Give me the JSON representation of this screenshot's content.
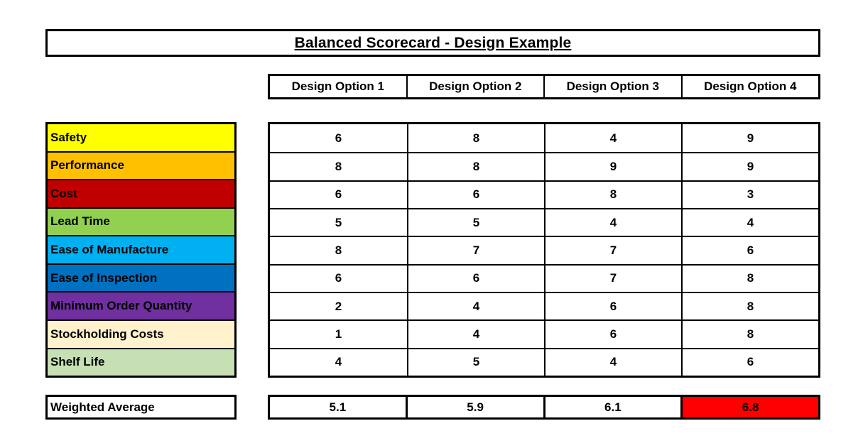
{
  "title": "Balanced Scorecard - Design Example",
  "columns": [
    "Design Option 1",
    "Design Option 2",
    "Design Option 3",
    "Design Option 4"
  ],
  "criteria": [
    {
      "label": "Safety",
      "color": "#FFFF00",
      "scores": [
        "6",
        "8",
        "4",
        "9"
      ]
    },
    {
      "label": "Performance",
      "color": "#FFC000",
      "scores": [
        "8",
        "8",
        "9",
        "9"
      ]
    },
    {
      "label": "Cost",
      "color": "#C00000",
      "scores": [
        "6",
        "6",
        "8",
        "3"
      ]
    },
    {
      "label": "Lead Time",
      "color": "#92D050",
      "scores": [
        "5",
        "5",
        "4",
        "4"
      ]
    },
    {
      "label": "Ease of Manufacture",
      "color": "#00B0F0",
      "scores": [
        "8",
        "7",
        "7",
        "6"
      ]
    },
    {
      "label": "Ease of Inspection",
      "color": "#0070C0",
      "scores": [
        "6",
        "6",
        "7",
        "8"
      ]
    },
    {
      "label": "Minimum Order Quantity",
      "color": "#7030A0",
      "scores": [
        "2",
        "4",
        "6",
        "8"
      ]
    },
    {
      "label": "Stockholding Costs",
      "color": "#FFF2CC",
      "scores": [
        "1",
        "4",
        "6",
        "8"
      ]
    },
    {
      "label": "Shelf Life",
      "color": "#C6E0B4",
      "scores": [
        "4",
        "5",
        "4",
        "6"
      ]
    }
  ],
  "weighted_average": {
    "label": "Weighted Average",
    "values": [
      "5.1",
      "5.9",
      "6.1",
      "6.8"
    ],
    "highlight_index": 3,
    "highlight_color": "#FF0000"
  },
  "colors": {
    "border": "#000000",
    "text": "#000000",
    "background": "#FFFFFF"
  }
}
